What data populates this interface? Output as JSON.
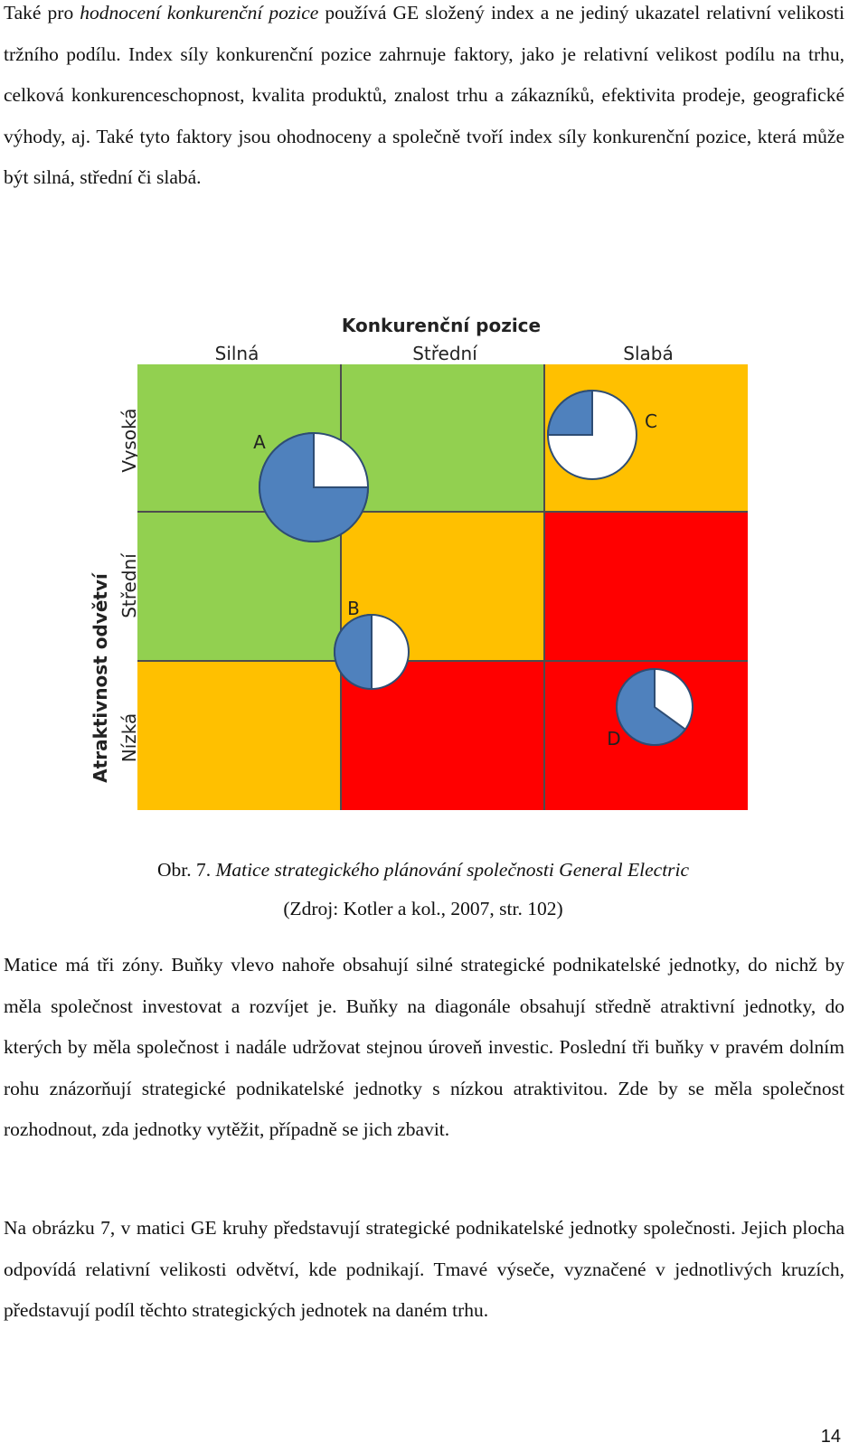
{
  "paragraphs": {
    "p1_part1": "Také pro ",
    "p1_italic": "hodnocení konkurenční pozice",
    "p1_part2": " používá GE složený index a ne jediný ukazatel relativní velikosti tržního podílu. Index síly konkurenční pozice zahrnuje faktory, jako je relativní velikost podílu na trhu, celková konkurenceschopnost, kvalita produktů, znalost trhu a zákazníků, efektivita prodeje, geografické výhody, aj. Také tyto faktory jsou ohodnoceny a společně tvoří index síly konkurenční pozice, která může být silná, střední či slabá.",
    "p2": "Matice má tři zóny. Buňky vlevo nahoře obsahují silné strategické podnikatelské jednotky, do nichž by měla společnost investovat a rozvíjet je. Buňky na diagonále obsahují středně atraktivní jednotky, do kterých by měla společnost i nadále udržovat stejnou úroveň investic. Poslední tři buňky v pravém dolním rohu znázorňují strategické podnikatelské jednotky s nízkou atraktivitou. Zde by se měla společnost rozhodnout, zda jednotky vytěžit, případně se jich zbavit.",
    "p3": "Na obrázku 7, v matici GE kruhy představují strategické podnikatelské jednotky společnosti. Jejich plocha odpovídá relativní velikosti odvětví, kde podnikají. Tmavé výseče, vyznačené v jednotlivých kruzích, představují podíl těchto strategických jednotek na daném trhu."
  },
  "figure": {
    "title": "Konkurenční pozice",
    "columns": [
      "Silná",
      "Střední",
      "Slabá"
    ],
    "y_axis_title": "Atraktivnost odvětví",
    "rows": [
      "Vysoká",
      "Střední",
      "Nízká"
    ],
    "cell_zones": [
      [
        "green",
        "green",
        "yellow"
      ],
      [
        "green",
        "yellow",
        "red"
      ],
      [
        "yellow",
        "red",
        "red"
      ]
    ],
    "colors": {
      "green": "#92d050",
      "yellow": "#ffc000",
      "red": "#ff0000",
      "share": "#4f81bd",
      "rest": "#ffffff"
    },
    "units": [
      {
        "label": "A",
        "market_share": 0.75
      },
      {
        "label": "B",
        "market_share": 0.5
      },
      {
        "label": "C",
        "market_share": 0.25
      },
      {
        "label": "D",
        "market_share": 0.65
      }
    ]
  },
  "caption": {
    "prefix": "Obr. 7. ",
    "title": "Matice strategického plánování společnosti General Electric",
    "source": "(Zdroj: Kotler a kol., 2007, str. 102)"
  },
  "page_number": "14"
}
